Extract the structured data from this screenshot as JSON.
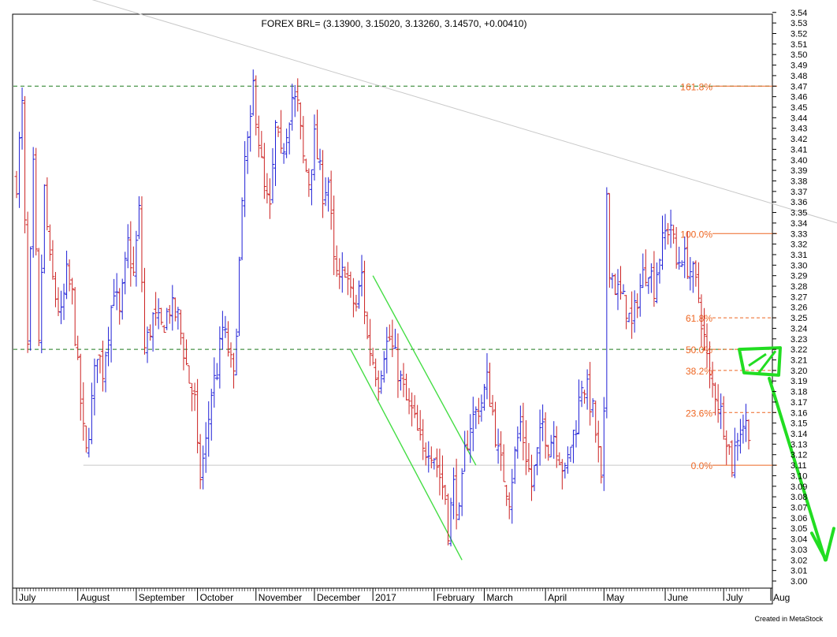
{
  "chart_data": {
    "type": "ohlc",
    "title": "FOREX BRL= (3.13900, 3.15020, 3.13260, 3.14570, +0.00410)",
    "credit": "Created in MetaStock",
    "ylim": [
      3.0,
      3.55
    ],
    "y_ticks": [
      "3.54",
      "3.53",
      "3.52",
      "3.51",
      "3.50",
      "3.49",
      "3.48",
      "3.47",
      "3.46",
      "3.45",
      "3.44",
      "3.43",
      "3.42",
      "3.41",
      "3.40",
      "3.39",
      "3.38",
      "3.37",
      "3.36",
      "3.35",
      "3.34",
      "3.33",
      "3.32",
      "3.31",
      "3.30",
      "3.29",
      "3.28",
      "3.27",
      "3.26",
      "3.25",
      "3.24",
      "3.23",
      "3.22",
      "3.21",
      "3.20",
      "3.19",
      "3.18",
      "3.17",
      "3.16",
      "3.15",
      "3.14",
      "3.13",
      "3.12",
      "3.11",
      "3.10",
      "3.09",
      "3.08",
      "3.07",
      "3.06",
      "3.05",
      "3.04",
      "3.03",
      "3.02",
      "3.01",
      "3.00"
    ],
    "months": [
      {
        "label": "July",
        "bar": 0
      },
      {
        "label": "August",
        "bar": 22
      },
      {
        "label": "September",
        "bar": 43
      },
      {
        "label": "October",
        "bar": 65
      },
      {
        "label": "November",
        "bar": 86
      },
      {
        "label": "December",
        "bar": 107
      },
      {
        "label": "2017",
        "bar": 128
      },
      {
        "label": "February",
        "bar": 150
      },
      {
        "label": "March",
        "bar": 168
      },
      {
        "label": "April",
        "bar": 190
      },
      {
        "label": "May",
        "bar": 211
      },
      {
        "label": "June",
        "bar": 233
      },
      {
        "label": "July",
        "bar": 254
      },
      {
        "label": "Aug",
        "bar": 276
      }
    ],
    "up_color": "#1f1fd6",
    "down_color": "#cc2222",
    "bar_count": 264,
    "anchors": [
      [
        0,
        3.38
      ],
      [
        2,
        3.45
      ],
      [
        4,
        3.22
      ],
      [
        6,
        3.39
      ],
      [
        8,
        3.22
      ],
      [
        10,
        3.37
      ],
      [
        12,
        3.3
      ],
      [
        14,
        3.27
      ],
      [
        16,
        3.25
      ],
      [
        18,
        3.29
      ],
      [
        20,
        3.27
      ],
      [
        22,
        3.2
      ],
      [
        24,
        3.14
      ],
      [
        25,
        3.12
      ],
      [
        27,
        3.17
      ],
      [
        29,
        3.22
      ],
      [
        31,
        3.2
      ],
      [
        33,
        3.24
      ],
      [
        35,
        3.28
      ],
      [
        37,
        3.25
      ],
      [
        40,
        3.32
      ],
      [
        42,
        3.29
      ],
      [
        44,
        3.35
      ],
      [
        46,
        3.22
      ],
      [
        49,
        3.25
      ],
      [
        52,
        3.24
      ],
      [
        55,
        3.26
      ],
      [
        58,
        3.25
      ],
      [
        60,
        3.22
      ],
      [
        62,
        3.19
      ],
      [
        64,
        3.17
      ],
      [
        65,
        3.12
      ],
      [
        66,
        3.1
      ],
      [
        68,
        3.13
      ],
      [
        70,
        3.18
      ],
      [
        72,
        3.2
      ],
      [
        74,
        3.24
      ],
      [
        76,
        3.22
      ],
      [
        78,
        3.19
      ],
      [
        80,
        3.3
      ],
      [
        82,
        3.4
      ],
      [
        84,
        3.43
      ],
      [
        85,
        3.47
      ],
      [
        87,
        3.42
      ],
      [
        89,
        3.37
      ],
      [
        91,
        3.35
      ],
      [
        93,
        3.43
      ],
      [
        95,
        3.4
      ],
      [
        97,
        3.43
      ],
      [
        99,
        3.46
      ],
      [
        101,
        3.45
      ],
      [
        103,
        3.4
      ],
      [
        105,
        3.38
      ],
      [
        107,
        3.42
      ],
      [
        110,
        3.37
      ],
      [
        112,
        3.38
      ],
      [
        114,
        3.3
      ],
      [
        116,
        3.28
      ],
      [
        118,
        3.3
      ],
      [
        120,
        3.27
      ],
      [
        122,
        3.26
      ],
      [
        124,
        3.29
      ],
      [
        126,
        3.23
      ],
      [
        128,
        3.21
      ],
      [
        130,
        3.19
      ],
      [
        132,
        3.22
      ],
      [
        134,
        3.23
      ],
      [
        136,
        3.21
      ],
      [
        138,
        3.19
      ],
      [
        140,
        3.17
      ],
      [
        142,
        3.16
      ],
      [
        144,
        3.14
      ],
      [
        146,
        3.12
      ],
      [
        148,
        3.13
      ],
      [
        150,
        3.12
      ],
      [
        152,
        3.1
      ],
      [
        154,
        3.08
      ],
      [
        155,
        3.05
      ],
      [
        157,
        3.09
      ],
      [
        159,
        3.06
      ],
      [
        161,
        3.12
      ],
      [
        163,
        3.15
      ],
      [
        165,
        3.16
      ],
      [
        167,
        3.17
      ],
      [
        169,
        3.19
      ],
      [
        171,
        3.16
      ],
      [
        173,
        3.12
      ],
      [
        175,
        3.1
      ],
      [
        177,
        3.08
      ],
      [
        179,
        3.12
      ],
      [
        181,
        3.15
      ],
      [
        183,
        3.12
      ],
      [
        185,
        3.09
      ],
      [
        187,
        3.12
      ],
      [
        189,
        3.15
      ],
      [
        191,
        3.13
      ],
      [
        193,
        3.14
      ],
      [
        195,
        3.12
      ],
      [
        197,
        3.1
      ],
      [
        199,
        3.13
      ],
      [
        201,
        3.15
      ],
      [
        203,
        3.19
      ],
      [
        205,
        3.18
      ],
      [
        207,
        3.16
      ],
      [
        209,
        3.12
      ],
      [
        210,
        3.09
      ],
      [
        211,
        3.15
      ],
      [
        212,
        3.37
      ],
      [
        213,
        3.3
      ],
      [
        215,
        3.28
      ],
      [
        217,
        3.27
      ],
      [
        219,
        3.26
      ],
      [
        221,
        3.24
      ],
      [
        223,
        3.27
      ],
      [
        225,
        3.29
      ],
      [
        227,
        3.3
      ],
      [
        229,
        3.28
      ],
      [
        231,
        3.31
      ],
      [
        233,
        3.33
      ],
      [
        235,
        3.34
      ],
      [
        237,
        3.3
      ],
      [
        239,
        3.31
      ],
      [
        241,
        3.3
      ],
      [
        243,
        3.29
      ],
      [
        245,
        3.27
      ],
      [
        247,
        3.23
      ],
      [
        249,
        3.19
      ],
      [
        251,
        3.18
      ],
      [
        253,
        3.16
      ],
      [
        255,
        3.14
      ],
      [
        257,
        3.11
      ],
      [
        259,
        3.14
      ],
      [
        261,
        3.15
      ],
      [
        263,
        3.146
      ]
    ],
    "trendlines": [
      {
        "from": [
          -8,
          3.58
        ],
        "to": [
          320,
          3.32
        ],
        "color": "#c8c8c8"
      },
      {
        "from": [
          24,
          3.11
        ],
        "to": [
          255,
          3.11
        ],
        "color": "#c8c8c8"
      }
    ],
    "channel": {
      "color": "#44dd44",
      "upper": {
        "from": [
          128,
          3.29
        ],
        "to": [
          165,
          3.11
        ]
      },
      "lower": {
        "from": [
          120,
          3.22
        ],
        "to": [
          160,
          3.02
        ]
      }
    },
    "horizontal_levels": [
      {
        "value": 3.47,
        "style": "dashed",
        "color": "#1e7a1e"
      },
      {
        "value": 3.22,
        "style": "dashed",
        "color": "#1e7a1e"
      }
    ],
    "fibonacci": {
      "color": "#ee6622",
      "levels": [
        {
          "label": "161.8%",
          "value": 3.47,
          "line": "solid"
        },
        {
          "label": "100.0%",
          "value": 3.33,
          "line": "solid"
        },
        {
          "label": "61.8%",
          "value": 3.25,
          "line": "dashed"
        },
        {
          "label": "50.0%",
          "value": 3.22,
          "line": "dashed"
        },
        {
          "label": "38.2%",
          "value": 3.2,
          "line": "dashed"
        },
        {
          "label": "23.6%",
          "value": 3.16,
          "line": "dashed"
        },
        {
          "label": "0.0%",
          "value": 3.11,
          "line": "solid"
        }
      ]
    },
    "annotation_arrow": {
      "color": "#22dd22",
      "box_from": [
        3.22,
        3.2
      ],
      "to": [
        3.02
      ]
    }
  }
}
